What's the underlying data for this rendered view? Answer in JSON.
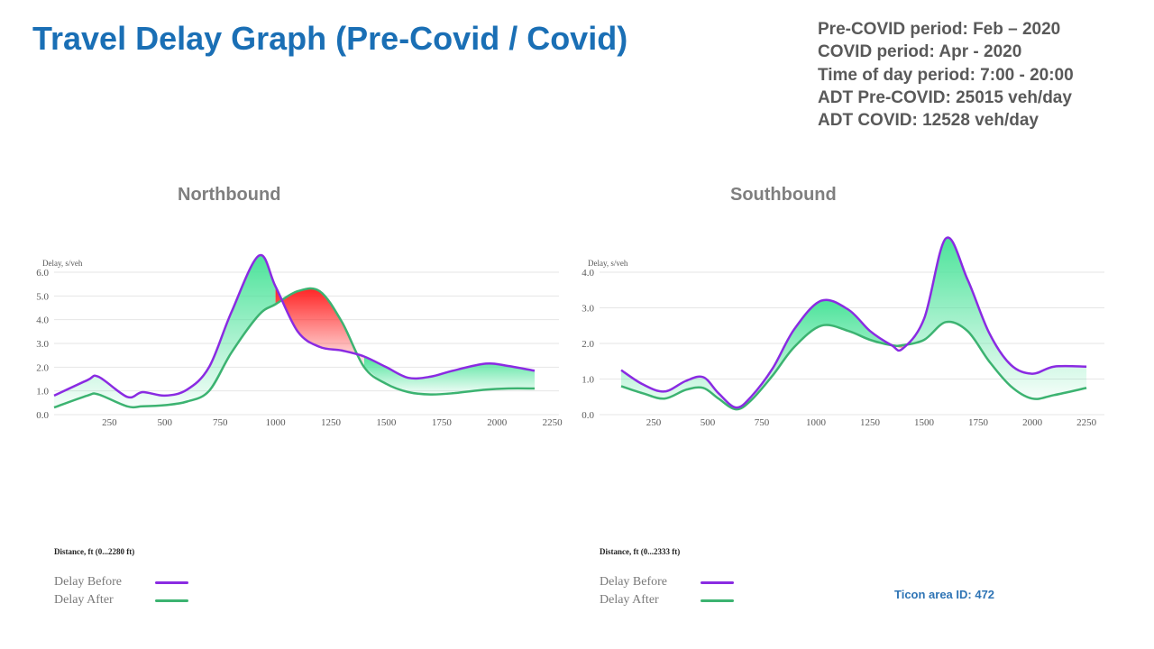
{
  "title": "Travel Delay Graph (Pre-Covid / Covid)",
  "info": [
    "Pre-COVID period: Feb – 2020",
    "COVID period: Apr - 2020",
    "Time of day period: 7:00 - 20:00",
    "ADT Pre-COVID: 25015 veh/day",
    "ADT COVID: 12528 veh/day"
  ],
  "ticon": "Ticon area ID: 472",
  "legend": {
    "before": "Delay Before",
    "after": "Delay After"
  },
  "colors": {
    "before": "#8a2be2",
    "after": "#3cb371",
    "improve": "#4ce39a",
    "worse": "#ff2020",
    "title": "#1a6fb5"
  },
  "chart_data": [
    {
      "type": "line",
      "title": "Northbound",
      "ylabel": "Delay, s/veh",
      "xlabel": "Distance, ft (0...2280 ft)",
      "xlim": [
        0,
        2280
      ],
      "ylim": [
        0,
        6.0
      ],
      "xticks": [
        "250",
        "500",
        "750",
        "1000",
        "1250",
        "1500",
        "1750",
        "2000",
        "2250"
      ],
      "yticks": [
        "0.0",
        "1.0",
        "2.0",
        "3.0",
        "4.0",
        "5.0",
        "6.0"
      ],
      "series": [
        {
          "name": "Delay Before",
          "x": [
            0,
            150,
            200,
            330,
            400,
            500,
            600,
            700,
            800,
            925,
            1000,
            1100,
            1200,
            1300,
            1400,
            1500,
            1600,
            1700,
            1800,
            1950,
            2050,
            2170
          ],
          "y": [
            0.8,
            1.45,
            1.6,
            0.75,
            0.95,
            0.8,
            1.05,
            2.0,
            4.3,
            6.7,
            5.4,
            3.5,
            2.85,
            2.7,
            2.45,
            2.0,
            1.55,
            1.6,
            1.85,
            2.15,
            2.05,
            1.85
          ]
        },
        {
          "name": "Delay After",
          "x": [
            0,
            150,
            200,
            330,
            400,
            500,
            600,
            700,
            800,
            925,
            1000,
            1100,
            1200,
            1300,
            1400,
            1500,
            1600,
            1700,
            1800,
            1950,
            2050,
            2170
          ],
          "y": [
            0.3,
            0.8,
            0.85,
            0.35,
            0.35,
            0.4,
            0.55,
            1.0,
            2.6,
            4.2,
            4.65,
            5.2,
            5.2,
            3.9,
            2.0,
            1.3,
            0.95,
            0.85,
            0.9,
            1.05,
            1.1,
            1.1
          ]
        }
      ]
    },
    {
      "type": "line",
      "title": "Southbound",
      "ylabel": "Delay, s/veh",
      "xlabel": "Distance, ft (0...2333 ft)",
      "xlim": [
        0,
        2333
      ],
      "ylim": [
        0,
        4.0
      ],
      "xticks": [
        "250",
        "500",
        "750",
        "1000",
        "1250",
        "1500",
        "1750",
        "2000",
        "2250"
      ],
      "yticks": [
        "0.0",
        "1.0",
        "2.0",
        "3.0",
        "4.0"
      ],
      "series": [
        {
          "name": "Delay Before",
          "x": [
            100,
            200,
            300,
            400,
            480,
            550,
            630,
            700,
            800,
            900,
            1025,
            1150,
            1250,
            1350,
            1400,
            1500,
            1600,
            1700,
            1800,
            1900,
            2000,
            2100,
            2250
          ],
          "y": [
            1.25,
            0.85,
            0.65,
            0.95,
            1.05,
            0.6,
            0.2,
            0.5,
            1.3,
            2.4,
            3.2,
            2.95,
            2.35,
            1.95,
            1.85,
            2.7,
            4.95,
            3.8,
            2.3,
            1.4,
            1.15,
            1.35,
            1.35
          ]
        },
        {
          "name": "Delay After",
          "x": [
            100,
            200,
            300,
            400,
            480,
            550,
            630,
            700,
            800,
            900,
            1025,
            1150,
            1250,
            1350,
            1400,
            1500,
            1600,
            1700,
            1800,
            1900,
            2000,
            2100,
            2250
          ],
          "y": [
            0.8,
            0.6,
            0.45,
            0.7,
            0.75,
            0.45,
            0.15,
            0.4,
            1.1,
            1.9,
            2.5,
            2.35,
            2.1,
            1.95,
            1.95,
            2.1,
            2.6,
            2.35,
            1.5,
            0.8,
            0.45,
            0.55,
            0.75
          ]
        }
      ]
    }
  ]
}
